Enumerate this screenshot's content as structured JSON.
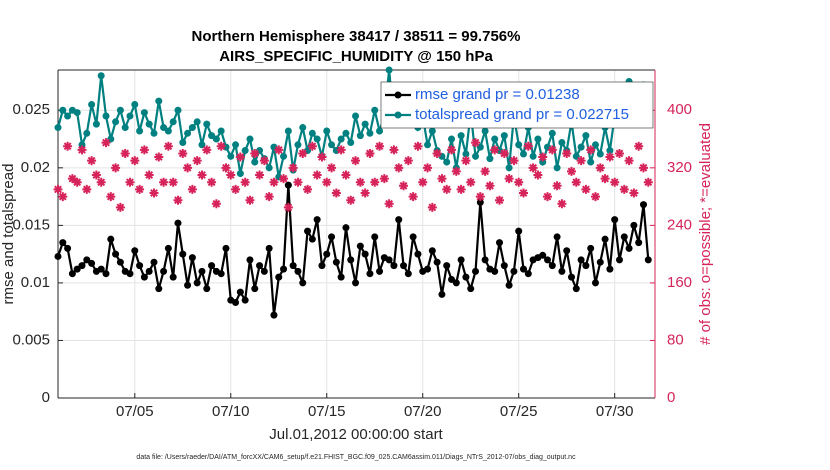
{
  "chart_data": {
    "type": "line",
    "title": [
      "Northern Hemisphere 38417 / 38511 = 99.756%",
      "AIRS_SPECIFIC_HUMIDITY @ 150 hPa"
    ],
    "xlabel": "Jul.01,2012 00:00:00 start",
    "ylabel": "rmse and totalspread",
    "y2label": "# of obs: o=possible; *=evaluated",
    "footnote": "data file: /Users/raeder/DAI/ATM_forcXX/CAM6_setup/f.e21.FHIST_BGC.f09_025.CAM6assim.011/Diags_NTrS_2012-07/obs_diag_output.nc",
    "grid": true,
    "legend": "northeast",
    "xlim": [
      0,
      31.1
    ],
    "xticks": [
      {
        "value": 4,
        "label": "07/05"
      },
      {
        "value": 9,
        "label": "07/10"
      },
      {
        "value": 14,
        "label": "07/15"
      },
      {
        "value": 19,
        "label": "07/20"
      },
      {
        "value": 24,
        "label": "07/25"
      },
      {
        "value": 29,
        "label": "07/30"
      }
    ],
    "ylim": [
      0,
      0.0285
    ],
    "yticks": [
      0,
      0.005,
      0.01,
      0.015,
      0.02,
      0.025
    ],
    "y2lim": [
      0,
      456
    ],
    "y2ticks": [
      0,
      80,
      160,
      240,
      320,
      400
    ],
    "y2color": "#d6245a",
    "x": [
      0,
      0.25,
      0.5,
      0.75,
      1,
      1.25,
      1.5,
      1.75,
      2,
      2.25,
      2.5,
      2.75,
      3,
      3.25,
      3.5,
      3.75,
      4,
      4.25,
      4.5,
      4.75,
      5,
      5.25,
      5.5,
      5.75,
      6,
      6.25,
      6.5,
      6.75,
      7,
      7.25,
      7.5,
      7.75,
      8,
      8.25,
      8.5,
      8.75,
      9,
      9.25,
      9.5,
      9.75,
      10,
      10.25,
      10.5,
      10.75,
      11,
      11.25,
      11.5,
      11.75,
      12,
      12.25,
      12.5,
      12.75,
      13,
      13.25,
      13.5,
      13.75,
      14,
      14.25,
      14.5,
      14.75,
      15,
      15.25,
      15.5,
      15.75,
      16,
      16.25,
      16.5,
      16.75,
      17,
      17.25,
      17.5,
      17.75,
      18,
      18.25,
      18.5,
      18.75,
      19,
      19.25,
      19.5,
      19.75,
      20,
      20.25,
      20.5,
      20.75,
      21,
      21.25,
      21.5,
      21.75,
      22,
      22.25,
      22.5,
      22.75,
      23,
      23.25,
      23.5,
      23.75,
      24,
      24.25,
      24.5,
      24.75,
      25,
      25.25,
      25.5,
      25.75,
      26,
      26.25,
      26.5,
      26.75,
      27,
      27.25,
      27.5,
      27.75,
      28,
      28.25,
      28.5,
      28.75,
      29,
      29.25,
      29.5,
      29.75,
      30,
      30.25,
      30.5,
      30.75
    ],
    "series": [
      {
        "name": "rmse grand pr = 0.01238",
        "color": "#000000",
        "marker": "circle",
        "values": [
          0.0123,
          0.0135,
          0.013,
          0.0108,
          0.0112,
          0.0115,
          0.012,
          0.0117,
          0.011,
          0.0112,
          0.0108,
          0.0138,
          0.0125,
          0.0118,
          0.011,
          0.0108,
          0.0128,
          0.0115,
          0.0105,
          0.011,
          0.0118,
          0.0095,
          0.011,
          0.013,
          0.0105,
          0.0152,
          0.0125,
          0.0098,
          0.0122,
          0.01,
          0.011,
          0.0095,
          0.0115,
          0.011,
          0.0108,
          0.013,
          0.0085,
          0.0083,
          0.0092,
          0.0085,
          0.012,
          0.0095,
          0.0115,
          0.011,
          0.013,
          0.0072,
          0.0105,
          0.0112,
          0.0185,
          0.0115,
          0.011,
          0.01,
          0.0145,
          0.0138,
          0.0155,
          0.0115,
          0.0125,
          0.014,
          0.0118,
          0.0105,
          0.0148,
          0.012,
          0.01,
          0.0132,
          0.0125,
          0.0108,
          0.014,
          0.011,
          0.0122,
          0.012,
          0.0115,
          0.0155,
          0.0115,
          0.0108,
          0.014,
          0.0125,
          0.011,
          0.0112,
          0.0128,
          0.0118,
          0.009,
          0.0115,
          0.0103,
          0.01,
          0.012,
          0.0105,
          0.0095,
          0.011,
          0.017,
          0.012,
          0.0112,
          0.011,
          0.0135,
          0.0115,
          0.0098,
          0.011,
          0.0145,
          0.0112,
          0.0108,
          0.012,
          0.0122,
          0.0124,
          0.012,
          0.0115,
          0.014,
          0.011,
          0.0128,
          0.0105,
          0.0095,
          0.012,
          0.0115,
          0.013,
          0.01,
          0.0118,
          0.0138,
          0.0112,
          0.0155,
          0.012,
          0.014,
          0.013,
          0.015,
          0.0135,
          0.0168,
          0.012
        ]
      },
      {
        "name": "totalspread grand pr = 0.022715",
        "color": "#008080",
        "marker": "circle",
        "values": [
          0.0235,
          0.025,
          0.0245,
          0.025,
          0.0248,
          0.022,
          0.023,
          0.0255,
          0.0238,
          0.028,
          0.0245,
          0.0225,
          0.024,
          0.025,
          0.0235,
          0.0245,
          0.0255,
          0.0232,
          0.0248,
          0.0238,
          0.023,
          0.0258,
          0.0235,
          0.0232,
          0.024,
          0.025,
          0.0222,
          0.023,
          0.0235,
          0.024,
          0.022,
          0.0238,
          0.0228,
          0.0225,
          0.0232,
          0.0218,
          0.021,
          0.022,
          0.0195,
          0.0215,
          0.0225,
          0.0205,
          0.0215,
          0.0208,
          0.02,
          0.0218,
          0.0192,
          0.021,
          0.0232,
          0.0198,
          0.022,
          0.0235,
          0.0215,
          0.023,
          0.0225,
          0.021,
          0.0232,
          0.022,
          0.0215,
          0.0225,
          0.023,
          0.0222,
          0.0245,
          0.0228,
          0.0238,
          0.023,
          0.025,
          0.0232,
          0.0245,
          0.0285,
          0.024,
          0.0268,
          0.025,
          0.024,
          0.027,
          0.0235,
          0.0245,
          0.022,
          0.0232,
          0.0215,
          0.021,
          0.0205,
          0.0225,
          0.02,
          0.0228,
          0.0212,
          0.0248,
          0.021,
          0.0218,
          0.0232,
          0.0208,
          0.0225,
          0.0215,
          0.0228,
          0.02,
          0.0245,
          0.022,
          0.0212,
          0.0235,
          0.021,
          0.0225,
          0.0205,
          0.0218,
          0.023,
          0.02,
          0.0222,
          0.0215,
          0.024,
          0.021,
          0.0218,
          0.0228,
          0.0205,
          0.022,
          0.0212,
          0.0235,
          0.0215,
          0.0245,
          0.026,
          0.024,
          0.0275,
          0.0262,
          0.027,
          0.0272,
          0.0255
        ]
      },
      {
        "color": "#d6245a",
        "marker": "star",
        "axis": "y2",
        "values": [
          290,
          280,
          350,
          305,
          300,
          345,
          290,
          330,
          310,
          300,
          355,
          280,
          320,
          265,
          340,
          300,
          330,
          290,
          345,
          310,
          285,
          335,
          300,
          350,
          300,
          275,
          340,
          320,
          290,
          330,
          310,
          345,
          300,
          270,
          350,
          320,
          310,
          290,
          335,
          300,
          275,
          340,
          310,
          330,
          280,
          300,
          345,
          305,
          265,
          320,
          300,
          340,
          290,
          350,
          310,
          335,
          300,
          320,
          285,
          345,
          310,
          275,
          330,
          300,
          285,
          340,
          300,
          350,
          305,
          270,
          345,
          320,
          295,
          330,
          280,
          350,
          300,
          320,
          265,
          340,
          305,
          290,
          345,
          315,
          290,
          330,
          300,
          355,
          280,
          315,
          295,
          345,
          275,
          340,
          305,
          330,
          300,
          285,
          350,
          320,
          310,
          335,
          280,
          345,
          295,
          270,
          340,
          315,
          300,
          330,
          290,
          345,
          280,
          320,
          305,
          335,
          300,
          340,
          290,
          330,
          285,
          350,
          320,
          300
        ]
      }
    ]
  }
}
